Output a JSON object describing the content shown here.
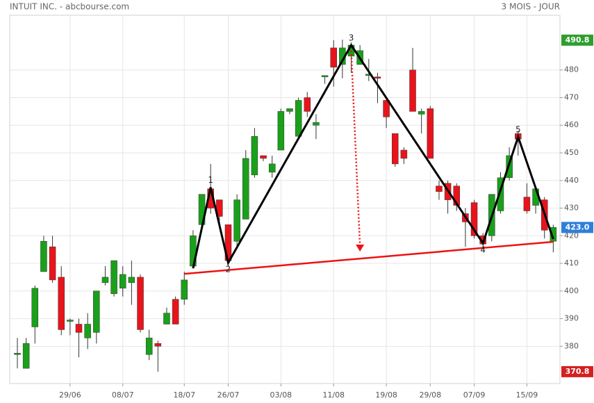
{
  "chart_data": {
    "type": "candlestick",
    "title": "INTUIT INC. - abcbourse.com",
    "subtitle": "3 MOIS - JOUR",
    "categories": [
      null,
      null,
      null,
      null,
      null,
      null,
      "29/06",
      null,
      null,
      null,
      null,
      null,
      "08/07",
      null,
      null,
      null,
      null,
      null,
      null,
      "18/07",
      null,
      null,
      null,
      null,
      "26/07",
      null,
      null,
      null,
      null,
      null,
      "03/08",
      null,
      null,
      null,
      null,
      null,
      "11/08",
      null,
      null,
      null,
      null,
      null,
      "19/08",
      null,
      null,
      null,
      null,
      "29/08",
      null,
      null,
      null,
      null,
      "07/09",
      null,
      null,
      null,
      null,
      null,
      "15/09",
      null,
      null,
      null
    ],
    "open": [
      377,
      372,
      387,
      407,
      416,
      405,
      389,
      388,
      383,
      385,
      403,
      399,
      401,
      403,
      405,
      377,
      381,
      388,
      397,
      397,
      409,
      424,
      437,
      433,
      424,
      418,
      426,
      442,
      449,
      443,
      451,
      465,
      456,
      470,
      460,
      477.5,
      488,
      482,
      485,
      482,
      478,
      477.5,
      469,
      457,
      451,
      480,
      464,
      466,
      438,
      439,
      438,
      428,
      432,
      420,
      420,
      429,
      441,
      457,
      434,
      431,
      433,
      418
    ],
    "high": [
      383,
      383,
      402,
      420,
      420,
      409,
      390,
      390,
      392,
      400,
      409,
      411,
      409,
      411,
      406,
      386,
      382,
      394,
      398,
      407,
      422,
      435,
      446,
      433,
      424,
      435,
      451,
      459,
      449,
      449,
      466,
      466,
      470,
      472,
      464,
      478,
      490.8,
      491,
      490,
      489,
      484,
      479,
      470,
      457,
      452,
      488,
      466,
      467,
      440,
      440,
      439,
      430,
      433,
      421,
      435,
      443,
      452,
      458,
      439,
      437,
      434,
      424
    ],
    "low": [
      372,
      372,
      381,
      407,
      403,
      384,
      384,
      376,
      379,
      381,
      402,
      398,
      398,
      395,
      385,
      375,
      370.8,
      388,
      388,
      395,
      409,
      424,
      428,
      424,
      409,
      416,
      426,
      441,
      447,
      441,
      451,
      464,
      456,
      463,
      455,
      475,
      474,
      477,
      479,
      482,
      476,
      468,
      459,
      445,
      446,
      465,
      457,
      448,
      433,
      428,
      429,
      416,
      419,
      415,
      418,
      428,
      440,
      449,
      428,
      428,
      419,
      414
    ],
    "close": [
      377.5,
      381,
      401,
      418,
      404,
      386,
      389.5,
      385,
      388,
      400,
      405,
      411,
      406,
      405,
      386,
      383,
      380,
      392,
      388,
      404,
      420,
      435,
      430,
      427,
      411,
      433,
      448,
      456,
      448,
      446,
      465,
      466,
      469,
      465,
      461,
      478,
      481,
      488,
      489,
      487,
      478.5,
      477,
      463,
      446,
      448,
      465,
      465,
      448,
      436,
      433,
      431,
      425,
      420,
      417,
      435,
      441,
      449,
      455,
      429,
      437,
      422,
      423
    ],
    "up_color": "#1aa01a",
    "down_color": "#e8141c",
    "ylim": [
      366.5,
      499.8
    ],
    "yticks": [
      380,
      390,
      400,
      410,
      420,
      430,
      440,
      450,
      460,
      470,
      480
    ],
    "grid": true,
    "price_markers": [
      {
        "value": 490.8,
        "color": "#2f9e2f"
      },
      {
        "value": 423,
        "label": "423.0",
        "color": "#2f7fd8"
      },
      {
        "value": 370.8,
        "color": "#d42020"
      }
    ],
    "pattern": {
      "color": "#000000",
      "points": [
        {
          "x": 20,
          "y": 408.2
        },
        {
          "x": 22,
          "y": 437.5,
          "label": "1"
        },
        {
          "x": 24,
          "y": 410.2,
          "label": "2"
        },
        {
          "x": 38,
          "y": 489,
          "label": "3"
        },
        {
          "x": 53,
          "y": 417.3,
          "label": "4"
        },
        {
          "x": 57,
          "y": 455.8,
          "label": "5"
        },
        {
          "x": 61,
          "y": 418.8
        }
      ]
    },
    "trend_line": {
      "color": "#ee1111",
      "x": [
        19,
        61
      ],
      "y": [
        406.2,
        417.8
      ]
    },
    "target_arrow": {
      "color": "#ee1111",
      "x": [
        38,
        39
      ],
      "y": [
        487,
        414.3
      ]
    }
  }
}
